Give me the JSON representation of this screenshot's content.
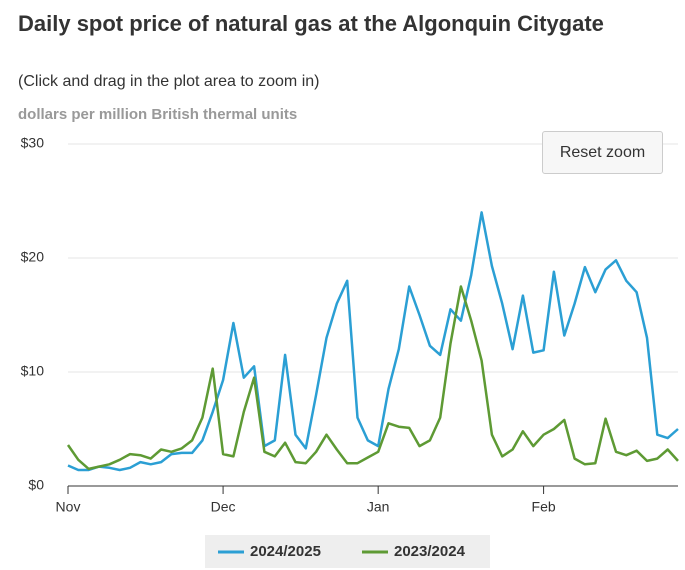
{
  "chart_data": {
    "type": "line",
    "title": "Daily spot price of natural gas at the Algonquin Citygate",
    "subtitle": "(Click and drag in the plot area to zoom in)",
    "y_label": "dollars per million British thermal units",
    "button": "Reset zoom",
    "categories": [
      "Nov",
      null,
      null,
      null,
      null,
      null,
      null,
      null,
      null,
      null,
      null,
      null,
      null,
      null,
      null,
      "Dec",
      null,
      null,
      null,
      null,
      null,
      null,
      null,
      null,
      null,
      null,
      null,
      null,
      null,
      null,
      "Jan",
      null,
      null,
      null,
      null,
      null,
      null,
      null,
      null,
      null,
      null,
      null,
      null,
      null,
      null,
      null,
      "Feb",
      null,
      null,
      null,
      null,
      null,
      null,
      null,
      null,
      null,
      null,
      null,
      null,
      null
    ],
    "series": [
      {
        "name": "2024/2025",
        "color": "#2b9fd4",
        "values": [
          1.8,
          1.4,
          1.4,
          1.7,
          1.6,
          1.4,
          1.6,
          2.1,
          1.9,
          2.1,
          2.8,
          2.9,
          2.9,
          4.0,
          6.5,
          9.3,
          14.3,
          9.5,
          10.5,
          3.5,
          4,
          11.5,
          4.5,
          3.3,
          8,
          13,
          16,
          18,
          6,
          4,
          3.5,
          8.5,
          12,
          17.5,
          15,
          12.3,
          11.5,
          15.5,
          14.5,
          18.5,
          24,
          19.3,
          16,
          12,
          16.7,
          11.7,
          11.9,
          18.8,
          13.2,
          16,
          19.2,
          17,
          19,
          19.8,
          18,
          17,
          13,
          4.5,
          4.2,
          5
        ]
      },
      {
        "name": "2023/2024",
        "color": "#5e9a34",
        "values": [
          3.6,
          2.3,
          1.5,
          1.7,
          1.9,
          2.3,
          2.8,
          2.7,
          2.4,
          3.2,
          3.0,
          3.3,
          4.0,
          6,
          10.3,
          2.8,
          2.6,
          6.5,
          9.5,
          3.0,
          2.6,
          3.8,
          2.1,
          2.0,
          3.0,
          4.5,
          3.2,
          2.0,
          2.0,
          2.5,
          3.0,
          5.5,
          5.2,
          5.1,
          3.5,
          4.0,
          6,
          12.5,
          17.5,
          14.5,
          11,
          4.5,
          2.6,
          3.2,
          4.8,
          3.5,
          4.5,
          5.0,
          5.8,
          2.4,
          1.9,
          2.0,
          5.9,
          3.0,
          2.7,
          3.1,
          2.2,
          2.4,
          3.2,
          2.2
        ]
      }
    ],
    "ylim": [
      0,
      30
    ],
    "yticks": [
      {
        "value": 0,
        "label": "$0"
      },
      {
        "value": 10,
        "label": "$10"
      },
      {
        "value": 20,
        "label": "$20"
      },
      {
        "value": 30,
        "label": "$30"
      }
    ],
    "grid": true
  }
}
